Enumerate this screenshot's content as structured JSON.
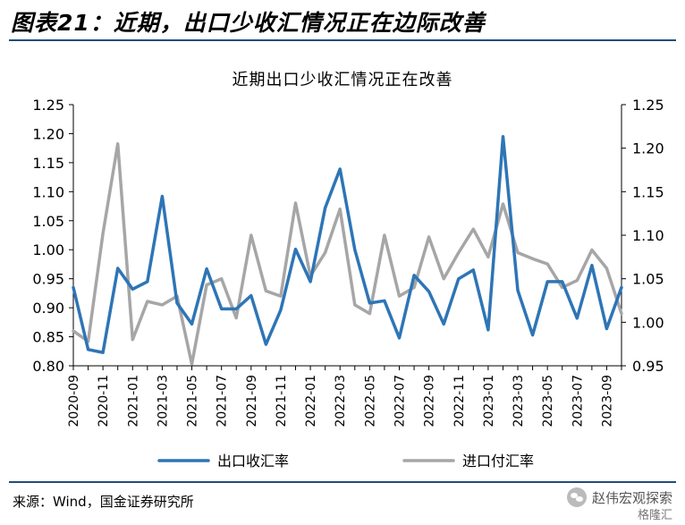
{
  "figure": {
    "title": "图表21：近期，出口少收汇情况正在边际改善",
    "source": "来源：Wind，国金证券研究所",
    "watermark": "赵伟宏观探索",
    "watermark_sub": "格隆汇"
  },
  "chart_data": {
    "type": "line",
    "title": "近期出口少收汇情况正在改善",
    "x": [
      "2020-09",
      "2020-10",
      "2020-11",
      "2020-12",
      "2021-01",
      "2021-02",
      "2021-03",
      "2021-04",
      "2021-05",
      "2021-06",
      "2021-07",
      "2021-08",
      "2021-09",
      "2021-10",
      "2021-11",
      "2021-12",
      "2022-01",
      "2022-02",
      "2022-03",
      "2022-04",
      "2022-05",
      "2022-06",
      "2022-07",
      "2022-08",
      "2022-09",
      "2022-10",
      "2022-11",
      "2022-12",
      "2023-01",
      "2023-02",
      "2023-03",
      "2023-04",
      "2023-05",
      "2023-06",
      "2023-07",
      "2023-08",
      "2023-09",
      "2023-10"
    ],
    "x_tick_labels": [
      "2020-09",
      "2020-11",
      "2021-01",
      "2021-03",
      "2021-05",
      "2021-07",
      "2021-09",
      "2021-11",
      "2022-01",
      "2022-03",
      "2022-05",
      "2022-07",
      "2022-09",
      "2022-11",
      "2023-01",
      "2023-03",
      "2023-05",
      "2023-07",
      "2023-09"
    ],
    "y_left": {
      "min": 0.8,
      "max": 1.25,
      "ticks": [
        "0.80",
        "0.85",
        "0.90",
        "0.95",
        "1.00",
        "1.05",
        "1.10",
        "1.15",
        "1.20",
        "1.25"
      ]
    },
    "y_right": {
      "min": 0.95,
      "max": 1.25,
      "ticks": [
        "0.95",
        "1.00",
        "1.05",
        "1.10",
        "1.15",
        "1.20",
        "1.25"
      ]
    },
    "grid": false,
    "legend_position": "bottom",
    "series": [
      {
        "name": "出口收汇率",
        "axis": "left",
        "color": "#2e75b6",
        "values": [
          0.935,
          0.828,
          0.823,
          0.968,
          0.932,
          0.945,
          1.092,
          0.908,
          0.872,
          0.967,
          0.898,
          0.898,
          0.921,
          0.837,
          0.896,
          1.001,
          0.945,
          1.072,
          1.139,
          1.0,
          0.908,
          0.912,
          0.848,
          0.956,
          0.928,
          0.872,
          0.95,
          0.965,
          0.862,
          1.195,
          0.93,
          0.853,
          0.945,
          0.945,
          0.882,
          0.973,
          0.864,
          0.935
        ]
      },
      {
        "name": "进口付汇率",
        "axis": "right",
        "color": "#a6a6a6",
        "values": [
          0.99,
          0.978,
          1.102,
          1.205,
          0.98,
          1.024,
          1.02,
          1.03,
          0.952,
          1.043,
          1.05,
          1.005,
          1.1,
          1.036,
          1.03,
          1.137,
          1.053,
          1.08,
          1.13,
          1.02,
          1.01,
          1.1,
          1.03,
          1.04,
          1.098,
          1.05,
          1.08,
          1.107,
          1.075,
          1.136,
          1.08,
          1.073,
          1.067,
          1.04,
          1.048,
          1.083,
          1.062,
          1.01
        ]
      }
    ]
  }
}
